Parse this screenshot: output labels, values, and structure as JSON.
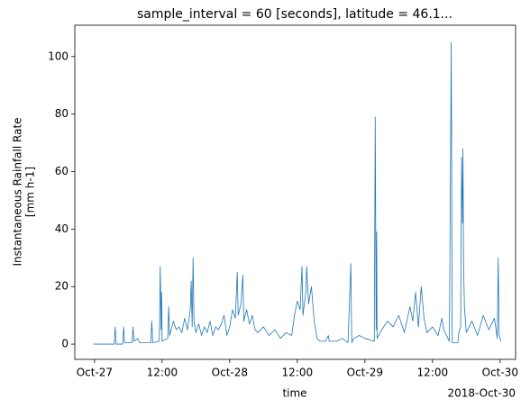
{
  "chart_data": {
    "type": "line",
    "title": "sample_interval = 60 [seconds], latitude = 46.1...",
    "ylabel": [
      "Instantaneous Rainfall Rate",
      "[mm h-1]"
    ],
    "xlabel": "time",
    "x_offset_label": "2018-Oct-30",
    "color": "#1f77b4",
    "xlim": [
      "2018-10-26 20:30",
      "2018-10-30 02:45"
    ],
    "ylim": [
      -5.3,
      110.9
    ],
    "xticks": [
      {
        "value": "2018-10-27 00:00",
        "label": "Oct-27"
      },
      {
        "value": "2018-10-27 12:00",
        "label": "12:00"
      },
      {
        "value": "2018-10-28 00:00",
        "label": "Oct-28"
      },
      {
        "value": "2018-10-28 12:00",
        "label": "12:00"
      },
      {
        "value": "2018-10-29 00:00",
        "label": "Oct-29"
      },
      {
        "value": "2018-10-29 12:00",
        "label": "12:00"
      },
      {
        "value": "2018-10-30 00:00",
        "label": "Oct-30"
      }
    ],
    "yticks": [
      0,
      20,
      40,
      60,
      80,
      100
    ],
    "x": [
      "2018-10-26 23:50",
      "2018-10-27 03:30",
      "2018-10-27 03:40",
      "2018-10-27 03:50",
      "2018-10-27 05:00",
      "2018-10-27 05:10",
      "2018-10-27 05:20",
      "2018-10-27 06:40",
      "2018-10-27 06:50",
      "2018-10-27 07:00",
      "2018-10-27 07:40",
      "2018-10-27 08:00",
      "2018-10-27 10:00",
      "2018-10-27 10:10",
      "2018-10-27 10:20",
      "2018-10-27 11:30",
      "2018-10-27 11:40",
      "2018-10-27 11:50",
      "2018-10-27 11:55",
      "2018-10-27 12:00",
      "2018-10-27 13:00",
      "2018-10-27 13:10",
      "2018-10-27 13:20",
      "2018-10-27 14:00",
      "2018-10-27 14:30",
      "2018-10-27 15:00",
      "2018-10-27 15:30",
      "2018-10-27 16:00",
      "2018-10-27 16:30",
      "2018-10-27 17:00",
      "2018-10-27 17:10",
      "2018-10-27 17:20",
      "2018-10-27 17:30",
      "2018-10-27 17:40",
      "2018-10-27 18:00",
      "2018-10-27 18:30",
      "2018-10-27 19:00",
      "2018-10-27 19:30",
      "2018-10-27 20:00",
      "2018-10-27 20:30",
      "2018-10-27 21:00",
      "2018-10-27 21:30",
      "2018-10-27 22:00",
      "2018-10-27 22:30",
      "2018-10-27 23:00",
      "2018-10-27 23:30",
      "2018-10-28 00:00",
      "2018-10-28 00:30",
      "2018-10-28 01:00",
      "2018-10-28 01:20",
      "2018-10-28 01:30",
      "2018-10-28 02:00",
      "2018-10-28 02:20",
      "2018-10-28 02:30",
      "2018-10-28 03:00",
      "2018-10-28 03:30",
      "2018-10-28 04:00",
      "2018-10-28 04:30",
      "2018-10-28 05:00",
      "2018-10-28 06:00",
      "2018-10-28 07:00",
      "2018-10-28 08:00",
      "2018-10-28 09:00",
      "2018-10-28 10:00",
      "2018-10-28 11:00",
      "2018-10-28 11:30",
      "2018-10-28 12:00",
      "2018-10-28 12:30",
      "2018-10-28 12:50",
      "2018-10-28 13:00",
      "2018-10-28 13:30",
      "2018-10-28 13:40",
      "2018-10-28 14:00",
      "2018-10-28 14:30",
      "2018-10-28 15:00",
      "2018-10-28 15:30",
      "2018-10-28 16:00",
      "2018-10-28 17:00",
      "2018-10-28 17:30",
      "2018-10-28 17:40",
      "2018-10-28 19:00",
      "2018-10-28 20:00",
      "2018-10-28 21:00",
      "2018-10-28 21:30",
      "2018-10-28 21:40",
      "2018-10-28 22:00",
      "2018-10-28 23:00",
      "2018-10-29 00:00",
      "2018-10-29 01:40",
      "2018-10-29 01:50",
      "2018-10-29 02:00",
      "2018-10-29 02:05",
      "2018-10-29 02:10",
      "2018-10-29 03:00",
      "2018-10-29 04:00",
      "2018-10-29 05:00",
      "2018-10-29 06:00",
      "2018-10-29 07:00",
      "2018-10-29 08:00",
      "2018-10-29 08:30",
      "2018-10-29 09:00",
      "2018-10-29 09:30",
      "2018-10-29 10:00",
      "2018-10-29 10:30",
      "2018-10-29 11:00",
      "2018-10-29 12:00",
      "2018-10-29 13:00",
      "2018-10-29 13:40",
      "2018-10-29 14:00",
      "2018-10-29 14:30",
      "2018-10-29 15:00",
      "2018-10-29 15:20",
      "2018-10-29 15:30",
      "2018-10-29 16:30",
      "2018-10-29 16:40",
      "2018-10-29 17:00",
      "2018-10-29 17:10",
      "2018-10-29 17:20",
      "2018-10-29 17:25",
      "2018-10-29 17:30",
      "2018-10-29 17:40",
      "2018-10-29 18:00",
      "2018-10-29 19:00",
      "2018-10-29 20:00",
      "2018-10-29 21:00",
      "2018-10-29 22:00",
      "2018-10-29 23:00",
      "2018-10-29 23:30",
      "2018-10-29 23:40",
      "2018-10-29 23:50",
      "2018-10-30 00:10"
    ],
    "values": [
      0,
      0,
      6,
      0,
      0,
      6,
      0.5,
      0.5,
      6,
      1,
      2,
      0.5,
      0.5,
      8,
      0.5,
      1,
      27,
      5,
      18,
      1,
      2,
      13,
      3,
      8,
      5,
      6,
      4,
      9,
      5,
      12,
      22,
      6,
      30,
      8,
      4,
      7,
      3,
      6,
      4,
      8,
      3,
      6,
      5,
      7,
      10,
      3,
      6,
      12,
      9,
      25,
      10,
      14,
      24,
      8,
      12,
      7,
      10,
      5,
      4,
      6,
      3,
      5,
      2,
      4,
      3,
      10,
      15,
      12,
      27,
      10,
      18,
      27,
      14,
      20,
      8,
      2,
      1,
      1,
      3,
      1,
      1,
      2,
      0.5,
      28,
      0.5,
      2,
      3,
      2,
      1,
      79,
      5,
      39,
      2,
      5,
      8,
      6,
      10,
      4,
      13,
      8,
      18,
      6,
      20,
      9,
      4,
      6,
      3,
      9,
      5,
      3,
      1,
      105,
      0.5,
      0.5,
      4,
      6,
      65,
      42,
      68,
      30,
      13,
      4,
      8,
      3,
      10,
      5,
      9,
      2,
      30,
      3,
      1
    ]
  }
}
